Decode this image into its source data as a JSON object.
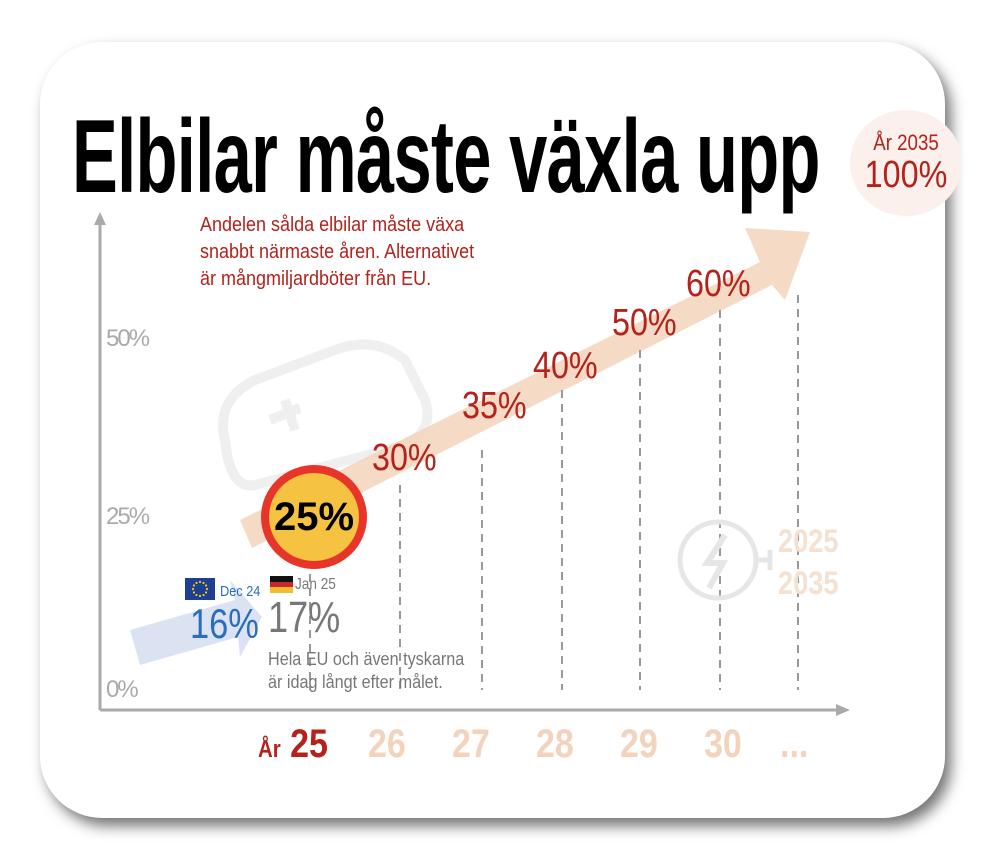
{
  "title": "Elbilar måste växla upp",
  "subtitle": [
    "Andelen sålda elbilar måste växa",
    "snabbt närmaste åren. Alternativet",
    "är mångmiljardböter från EU."
  ],
  "target": {
    "label": "År 2035",
    "value": "100%"
  },
  "colors": {
    "accent_red": "#b5211b",
    "arrow": "#f3d3bc",
    "eu_blue": "#2a6ebb",
    "circle_fill": "#f5c242",
    "circle_border": "#e8352a"
  },
  "chart_data": {
    "type": "line",
    "y_tick_labels": [
      "50%",
      "25%",
      "0%"
    ],
    "x_tick_labels": {
      "prefix": "År",
      "labels": [
        "25",
        "26",
        "27",
        "28",
        "29",
        "30",
        "..."
      ]
    },
    "series": [
      {
        "values": [
          {
            "x": "25",
            "y": 25,
            "label": "25%"
          },
          {
            "x": "26",
            "y": 30,
            "label": "30%"
          },
          {
            "x": "27",
            "y": 35,
            "label": "35%"
          },
          {
            "x": "28",
            "y": 40,
            "label": "40%"
          },
          {
            "x": "29",
            "y": 50,
            "label": "50%"
          },
          {
            "x": "30",
            "y": 60,
            "label": "60%"
          }
        ]
      }
    ],
    "annotations": {
      "eu": {
        "date": "Dec 24",
        "value": "16%",
        "icon": "eu-flag-icon"
      },
      "germany": {
        "date": "Jan 25",
        "value": "17%",
        "icon": "germany-flag-icon"
      },
      "note": [
        "Hela EU och även tyskarna",
        "är idag långt efter målet."
      ]
    },
    "grid": false
  },
  "badge_years": [
    "2025",
    "2035"
  ]
}
